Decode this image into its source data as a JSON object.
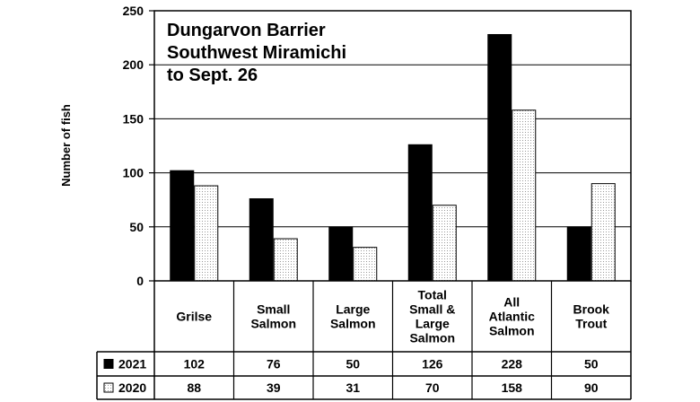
{
  "chart_data": {
    "type": "bar",
    "title_lines": [
      "Dungarvon Barrier",
      "Southwest Miramichi",
      "to Sept. 26"
    ],
    "ylabel": "Number of fish",
    "ylim": [
      0,
      250
    ],
    "yticks": [
      0,
      50,
      100,
      150,
      200,
      250
    ],
    "grid": true,
    "categories": [
      [
        "Grilse"
      ],
      [
        "Small",
        "Salmon"
      ],
      [
        "Large",
        "Salmon"
      ],
      [
        "Total",
        "Small &",
        "Large",
        "Salmon"
      ],
      [
        "All",
        "Atlantic",
        "Salmon"
      ],
      [
        "Brook",
        "Trout"
      ]
    ],
    "series": [
      {
        "name": "2021",
        "values": [
          102,
          76,
          50,
          126,
          228,
          50
        ],
        "fill": "#000000",
        "pattern": "solid"
      },
      {
        "name": "2020",
        "values": [
          88,
          39,
          31,
          70,
          158,
          90
        ],
        "fill": "#ffffff",
        "pattern": "dotted"
      }
    ]
  }
}
